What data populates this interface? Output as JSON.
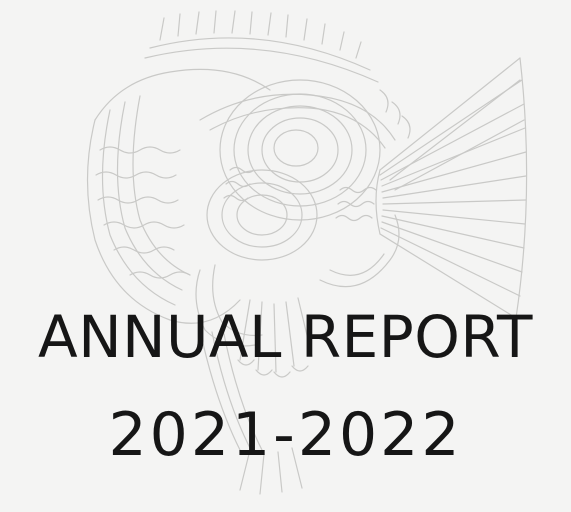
{
  "cover": {
    "title_line_1": "ANNUAL REPORT",
    "title_line_2": "2021-2022",
    "artwork_icon": "intricate-line-drawing-fish-illustration",
    "colors": {
      "background": "#f4f4f3",
      "artwork_stroke": "#c9c9c7",
      "title": "#161616"
    }
  }
}
